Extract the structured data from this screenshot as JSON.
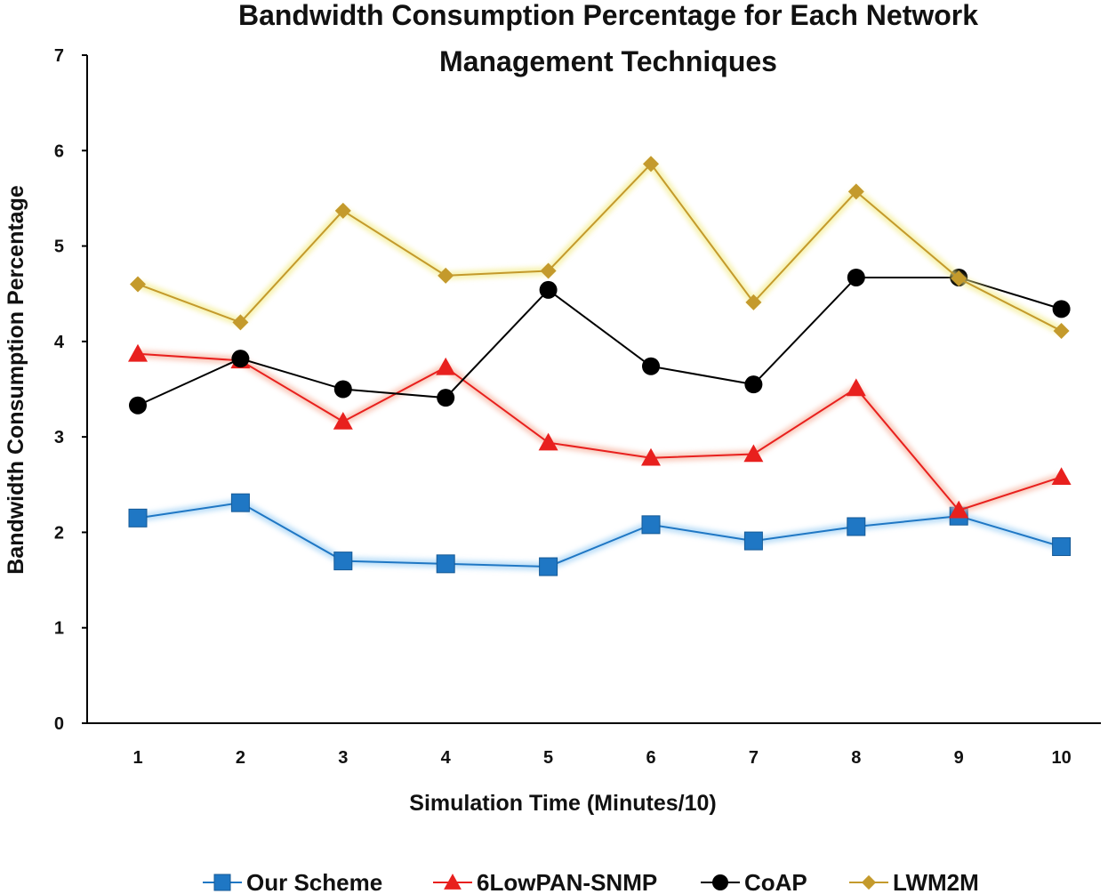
{
  "chart_data": {
    "type": "line",
    "title_lines": [
      "Bandwidth Consumption Percentage for Each Network",
      "Management Techniques"
    ],
    "xlabel": "Simulation Time (Minutes/10)",
    "ylabel": "Bandwidth Consumption Percentage",
    "categories": [
      "1",
      "2",
      "3",
      "4",
      "5",
      "6",
      "7",
      "8",
      "9",
      "10"
    ],
    "ylim": [
      0,
      7
    ],
    "yticks": [
      "0",
      "1",
      "2",
      "3",
      "4",
      "5",
      "6",
      "7"
    ],
    "grid": false,
    "legend_position": "bottom",
    "series": [
      {
        "name": "Our Scheme",
        "color": "#1f77c4",
        "glow": "#9fd0f5",
        "marker": "square",
        "values": [
          2.15,
          2.31,
          1.7,
          1.67,
          1.64,
          2.08,
          1.91,
          2.06,
          2.17,
          1.85
        ]
      },
      {
        "name": "6LowPAN-SNMP",
        "color": "#e8201e",
        "glow": "#f7b39f",
        "marker": "triangle",
        "values": [
          3.87,
          3.8,
          3.16,
          3.73,
          2.94,
          2.78,
          2.82,
          3.51,
          2.23,
          2.58
        ]
      },
      {
        "name": "CoAP",
        "color": "#000000",
        "glow": "none",
        "marker": "circle",
        "values": [
          3.33,
          3.82,
          3.5,
          3.41,
          4.54,
          3.74,
          3.55,
          4.67,
          4.67,
          4.34
        ]
      },
      {
        "name": "LWM2M",
        "color": "#c49a2c",
        "glow": "#f3ec8a",
        "marker": "diamond",
        "values": [
          4.6,
          4.2,
          5.37,
          4.69,
          4.74,
          5.86,
          4.41,
          5.57,
          4.66,
          4.11
        ]
      }
    ]
  }
}
